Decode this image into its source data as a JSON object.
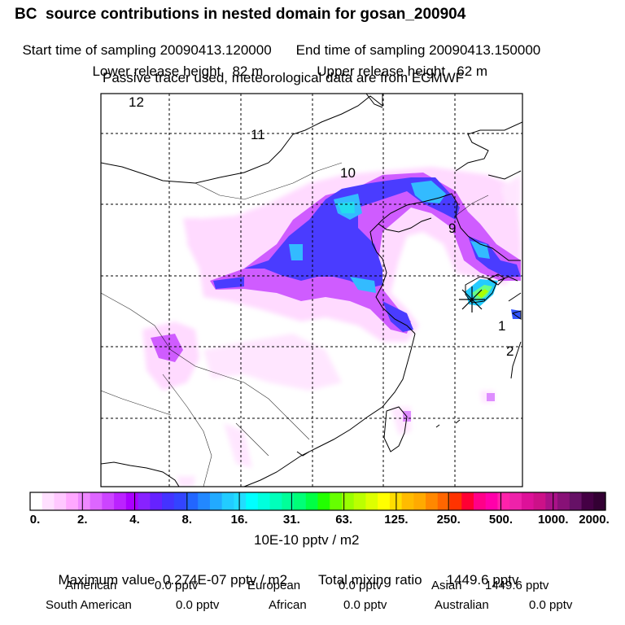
{
  "header": {
    "title": "BC  source contributions in nested domain for gosan_200904",
    "start_label": "Start time of sampling 20090413.120000",
    "end_label": "End time of sampling 20090413.150000",
    "lower_label": "Lower release height   82 m",
    "upper_label": "Upper release height   62 m",
    "tracer_note": "Passive tracer used, meteorological data are from ECMWF"
  },
  "map": {
    "hour_labels": [
      "12",
      "11",
      "10",
      "9",
      "1",
      "2"
    ]
  },
  "colorbar": {
    "labels": [
      "0.",
      "2.",
      "4.",
      "8.",
      "16.",
      "31.",
      "63.",
      "125.",
      "250.",
      "500.",
      "1000.",
      "2000."
    ],
    "colors": [
      "#ffffff",
      "#ffe0ff",
      "#ffc8ff",
      "#ffa8ff",
      "#ee88ff",
      "#dd66ff",
      "#cc44ff",
      "#bb22ff",
      "#aa00ff",
      "#8822ff",
      "#6622ff",
      "#4433ff",
      "#3344ff",
      "#2266ff",
      "#2288ff",
      "#22aaff",
      "#22ccff",
      "#22ddff",
      "#00ffff",
      "#00ffdd",
      "#00ffbb",
      "#00ff99",
      "#00ff77",
      "#00ff44",
      "#22ff00",
      "#66ff00",
      "#99ff00",
      "#bbff00",
      "#ddff00",
      "#ffff00",
      "#ffdd00",
      "#ffbb00",
      "#ffaa00",
      "#ff8800",
      "#ff6600",
      "#ff3300",
      "#ff0033",
      "#ff0088",
      "#ff00aa",
      "#ff22aa",
      "#ee22aa",
      "#dd1199",
      "#cc1188",
      "#aa1188",
      "#881177",
      "#661166",
      "#440044",
      "#330033"
    ],
    "unit": "10E-10 pptv / m2"
  },
  "stats": {
    "max_label": "Maximum value",
    "max_value": "0.274E-07 pptv / m2",
    "total_label": "Total mixing ratio",
    "total_value": "1449.6 pptv",
    "regions": [
      {
        "name": "American",
        "value": "0.0 pptv"
      },
      {
        "name": "European",
        "value": "0.0 pptv"
      },
      {
        "name": "Asian",
        "value": "1449.6 pptv"
      },
      {
        "name": "South American",
        "value": "0.0 pptv"
      },
      {
        "name": "African",
        "value": "0.0 pptv"
      },
      {
        "name": "Australian",
        "value": "0.0 pptv"
      }
    ]
  }
}
